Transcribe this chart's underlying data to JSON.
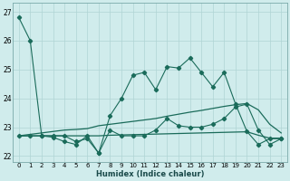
{
  "x": [
    0,
    1,
    2,
    3,
    4,
    5,
    6,
    7,
    8,
    9,
    10,
    11,
    12,
    13,
    14,
    15,
    16,
    17,
    18,
    19,
    20,
    21,
    22,
    23
  ],
  "line_top": [
    26.8,
    26.0,
    22.7,
    22.7,
    22.7,
    22.5,
    22.6,
    22.1,
    23.4,
    24.0,
    24.8,
    24.9,
    24.3,
    25.1,
    25.05,
    25.4,
    24.9,
    24.4,
    24.9,
    23.8,
    22.85,
    22.4,
    22.6,
    22.6
  ],
  "line_bot": [
    22.7,
    22.7,
    22.7,
    22.65,
    22.5,
    22.4,
    22.7,
    22.1,
    22.9,
    22.7,
    22.7,
    22.7,
    22.9,
    23.3,
    23.05,
    23.0,
    23.0,
    23.1,
    23.3,
    23.7,
    23.8,
    22.9,
    22.4,
    22.6
  ],
  "line_smooth_hi": [
    22.7,
    22.75,
    22.8,
    22.85,
    22.9,
    22.92,
    22.95,
    23.05,
    23.1,
    23.15,
    23.2,
    23.25,
    23.3,
    23.38,
    23.45,
    23.52,
    23.58,
    23.65,
    23.72,
    23.78,
    23.82,
    23.6,
    23.1,
    22.8
  ],
  "line_smooth_lo": [
    22.7,
    22.7,
    22.7,
    22.7,
    22.7,
    22.7,
    22.7,
    22.7,
    22.72,
    22.73,
    22.74,
    22.75,
    22.76,
    22.77,
    22.78,
    22.79,
    22.8,
    22.81,
    22.82,
    22.83,
    22.84,
    22.72,
    22.62,
    22.62
  ],
  "line_color": "#1a6b5a",
  "background_color": "#d0ecec",
  "grid_color": "#b0d4d4",
  "xlabel": "Humidex (Indice chaleur)",
  "ylim": [
    21.8,
    27.3
  ],
  "xlim": [
    -0.5,
    23.5
  ],
  "yticks": [
    22,
    23,
    24,
    25,
    26,
    27
  ],
  "xticks": [
    0,
    1,
    2,
    3,
    4,
    5,
    6,
    7,
    8,
    9,
    10,
    11,
    12,
    13,
    14,
    15,
    16,
    17,
    18,
    19,
    20,
    21,
    22,
    23
  ]
}
